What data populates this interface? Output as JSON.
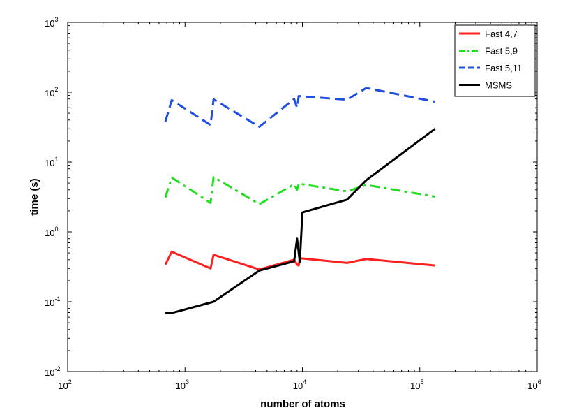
{
  "chart_data": {
    "type": "line",
    "title": "",
    "xlabel": "number of atoms",
    "ylabel": "time (s)",
    "x_scale": "log",
    "y_scale": "log",
    "xlim": [
      100,
      1000000
    ],
    "ylim": [
      0.01,
      1000
    ],
    "x_ticks": [
      {
        "value": 100,
        "base": "10",
        "exp": "2"
      },
      {
        "value": 1000,
        "base": "10",
        "exp": "3"
      },
      {
        "value": 10000,
        "base": "10",
        "exp": "4"
      },
      {
        "value": 100000,
        "base": "10",
        "exp": "5"
      },
      {
        "value": 1000000,
        "base": "10",
        "exp": "6"
      }
    ],
    "y_ticks": [
      {
        "value": 0.01,
        "base": "10",
        "exp": "-2"
      },
      {
        "value": 0.1,
        "base": "10",
        "exp": "-1"
      },
      {
        "value": 1,
        "base": "10",
        "exp": "0"
      },
      {
        "value": 10,
        "base": "10",
        "exp": "1"
      },
      {
        "value": 100,
        "base": "10",
        "exp": "2"
      },
      {
        "value": 1000,
        "base": "10",
        "exp": "3"
      }
    ],
    "grid": false,
    "legend_position": "top-right",
    "series": [
      {
        "name": "Fast 4,7",
        "color": "#ff2020",
        "dash": "solid",
        "points": [
          [
            680,
            0.34
          ],
          [
            770,
            0.52
          ],
          [
            1650,
            0.3
          ],
          [
            1750,
            0.47
          ],
          [
            4300,
            0.29
          ],
          [
            8500,
            0.4
          ],
          [
            9000,
            0.34
          ],
          [
            9300,
            0.33
          ],
          [
            9500,
            0.42
          ],
          [
            24000,
            0.36
          ],
          [
            35000,
            0.41
          ],
          [
            135000,
            0.33
          ]
        ]
      },
      {
        "name": "Fast 5,9",
        "color": "#22dd22",
        "dash": "dashdot",
        "points": [
          [
            680,
            3.1
          ],
          [
            770,
            6.0
          ],
          [
            1650,
            2.6
          ],
          [
            1750,
            6.1
          ],
          [
            4300,
            2.5
          ],
          [
            8500,
            4.8
          ],
          [
            9000,
            4.0
          ],
          [
            9300,
            4.9
          ],
          [
            24000,
            3.8
          ],
          [
            35000,
            4.7
          ],
          [
            135000,
            3.2
          ]
        ]
      },
      {
        "name": "Fast 5,11",
        "color": "#1f4fe0",
        "dash": "dash",
        "points": [
          [
            680,
            38
          ],
          [
            770,
            77
          ],
          [
            1650,
            34
          ],
          [
            1750,
            79
          ],
          [
            4300,
            32
          ],
          [
            8500,
            80
          ],
          [
            9000,
            60
          ],
          [
            9300,
            88
          ],
          [
            24000,
            78
          ],
          [
            35000,
            115
          ],
          [
            135000,
            73
          ]
        ]
      },
      {
        "name": "MSMS",
        "color": "#000000",
        "dash": "solid",
        "points": [
          [
            680,
            0.069
          ],
          [
            770,
            0.069
          ],
          [
            1750,
            0.1
          ],
          [
            4300,
            0.28
          ],
          [
            8500,
            0.38
          ],
          [
            9000,
            0.8
          ],
          [
            9500,
            0.37
          ],
          [
            10000,
            1.9
          ],
          [
            24000,
            2.9
          ],
          [
            35000,
            5.5
          ],
          [
            135000,
            30
          ]
        ]
      }
    ]
  }
}
